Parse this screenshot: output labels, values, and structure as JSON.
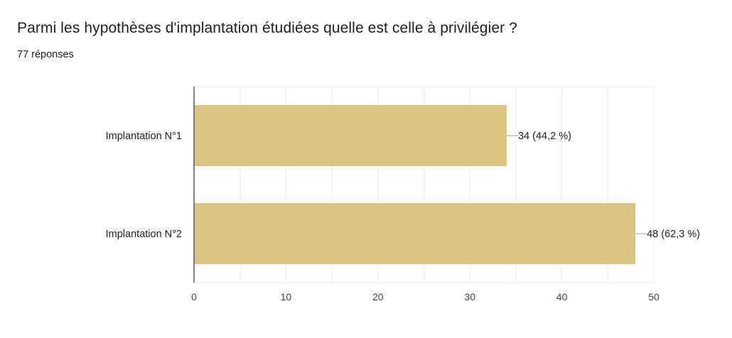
{
  "question": {
    "title": "Parmi les hypothèses d'implantation étudiées quelle est celle à privilégier ?",
    "response_count": "77 réponses"
  },
  "colors": {
    "bar": "#dbc584",
    "grid": "#ebebeb",
    "axis": "#333333",
    "leader": "#9e9e9e"
  },
  "chart_data": {
    "type": "bar",
    "orientation": "horizontal",
    "categories": [
      "Implantation N°1",
      "Implantation N°2"
    ],
    "values": [
      34,
      48
    ],
    "data_labels": [
      "34 (44,2 %)",
      "48 (62,3 %)"
    ],
    "xlim": [
      0,
      50
    ],
    "x_ticks": [
      0,
      10,
      20,
      30,
      40,
      50
    ],
    "grid": true,
    "title": "",
    "xlabel": "",
    "ylabel": ""
  }
}
